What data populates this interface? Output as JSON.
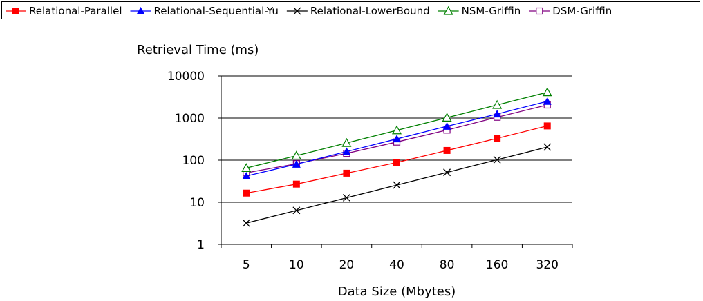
{
  "chart_data": {
    "type": "line",
    "title": "",
    "ylabel": "Retrieval Time (ms)",
    "xlabel": "Data Size (Mbytes)",
    "yscale": "log",
    "ylim": [
      1,
      10000
    ],
    "yticks": [
      "1",
      "10",
      "100",
      "1000",
      "10000"
    ],
    "categories": [
      "5",
      "10",
      "20",
      "40",
      "80",
      "160",
      "320"
    ],
    "grid": "horizontal",
    "legend_position": "top",
    "series": [
      {
        "name": "Relational-Parallel",
        "color": "#ff0000",
        "marker": "filled-square",
        "values": [
          16.5,
          27,
          49,
          88,
          170,
          330,
          650
        ]
      },
      {
        "name": "Relational-Sequential-Yu",
        "color": "#0000ff",
        "marker": "filled-triangle",
        "values": [
          42,
          80,
          160,
          320,
          640,
          1250,
          2500
        ]
      },
      {
        "name": "Relational-LowerBound",
        "color": "#000000",
        "marker": "x",
        "values": [
          3.2,
          6.4,
          12.8,
          25.6,
          51.2,
          102.4,
          204.8
        ]
      },
      {
        "name": "NSM-Griffin",
        "color": "#008000",
        "marker": "open-triangle",
        "values": [
          65,
          128,
          256,
          512,
          1024,
          2048,
          4096
        ]
      },
      {
        "name": "DSM-Griffin",
        "color": "#800080",
        "marker": "open-square",
        "values": [
          50,
          82,
          145,
          270,
          520,
          1050,
          2050
        ]
      }
    ]
  }
}
